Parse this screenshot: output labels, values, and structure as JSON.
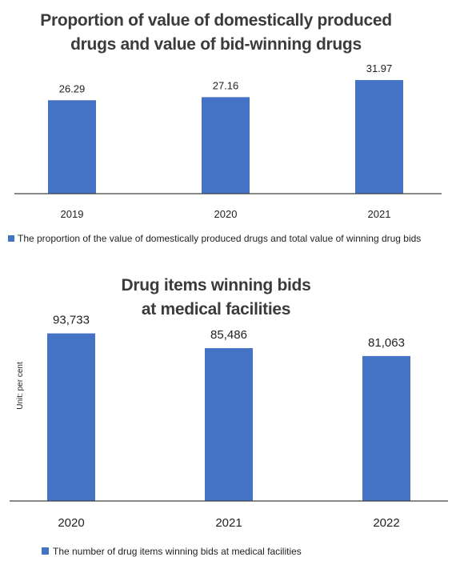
{
  "colors": {
    "bar": "#4472c4",
    "axis": "#404040",
    "title": "#3b3b3b"
  },
  "chart_data": [
    {
      "type": "bar",
      "title_lines": [
        "Proportion of value of domestically produced",
        "drugs and value of bid-winning drugs"
      ],
      "categories": [
        "2019",
        "2020",
        "2021"
      ],
      "series": [
        {
          "name": "The proportion of the value of domestically produced drugs and total value of winning drug bids",
          "values": [
            26.29,
            27.16,
            31.97
          ],
          "labels": [
            "26.29",
            "27.16",
            "31.97"
          ]
        }
      ],
      "ylim": [
        0,
        35
      ],
      "grid": false,
      "legend_position": "bottom-left"
    },
    {
      "type": "bar",
      "title_lines": [
        "Drug items winning bids",
        "at medical facilities"
      ],
      "ylabel": "Unit: per cent",
      "categories": [
        "2020",
        "2021",
        "2022"
      ],
      "series": [
        {
          "name": "The number of drug items winning bids at medical facilities",
          "values": [
            93733,
            85486,
            81063
          ],
          "labels": [
            "93,733",
            "85,486",
            "81,063"
          ]
        }
      ],
      "ylim": [
        0,
        100000
      ],
      "grid": false,
      "legend_position": "bottom-left"
    }
  ]
}
